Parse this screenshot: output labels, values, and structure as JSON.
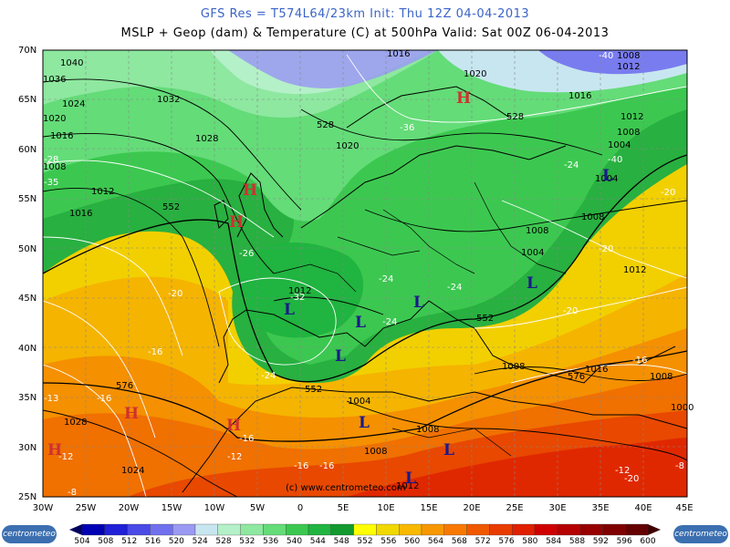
{
  "header": {
    "line1": "GFS Res = T574L64/23km   Init: Thu 12Z 04-04-2013",
    "line2": "MSLP + Geop (dam) & Temperature (C) at 500hPa   Valid: Sat 00Z 06-04-2013"
  },
  "axes": {
    "lat_labels": [
      "70N",
      "65N",
      "60N",
      "55N",
      "50N",
      "45N",
      "40N",
      "35N",
      "30N",
      "25N"
    ],
    "lon_labels": [
      "30W",
      "25W",
      "20W",
      "15W",
      "10W",
      "5W",
      "0",
      "5E",
      "10E",
      "15E",
      "20E",
      "25E",
      "30E",
      "35E",
      "40E",
      "45E"
    ]
  },
  "pressure_centers": [
    {
      "type": "H",
      "color": "#d03030"
    },
    {
      "type": "H",
      "color": "#d03030"
    },
    {
      "type": "H",
      "color": "#d03030"
    },
    {
      "type": "H",
      "color": "#d03030"
    },
    {
      "type": "H",
      "color": "#d03030"
    },
    {
      "type": "H",
      "color": "#d03030"
    },
    {
      "type": "L",
      "color": "#1a1a8a"
    },
    {
      "type": "L",
      "color": "#1a1a8a"
    },
    {
      "type": "L",
      "color": "#1a1a8a"
    },
    {
      "type": "L",
      "color": "#1a1a8a"
    },
    {
      "type": "L",
      "color": "#1a1a8a"
    },
    {
      "type": "L",
      "color": "#1a1a8a"
    },
    {
      "type": "L",
      "color": "#1a1a8a"
    },
    {
      "type": "L",
      "color": "#1a1a8a"
    },
    {
      "type": "L",
      "color": "#1a1a8a"
    }
  ],
  "isobar_labels": [
    "1040",
    "1036",
    "1024",
    "1020",
    "1032",
    "1028",
    "1016",
    "1008",
    "1012",
    "1016",
    "1020",
    "1016",
    "1008",
    "1012",
    "1004",
    "1012",
    "1008",
    "1004",
    "1008",
    "1012",
    "1012",
    "1004",
    "1008",
    "1016",
    "1008",
    "1016",
    "1028",
    "1008",
    "1004",
    "1008",
    "1024",
    "1012",
    "1008",
    "1000",
    "1020"
  ],
  "geopotential_labels": [
    "528",
    "528",
    "552",
    "552",
    "552",
    "576",
    "576"
  ],
  "temperature_labels": [
    "-28",
    "-35",
    "-24",
    "-20",
    "-36",
    "-26",
    "-32",
    "-24",
    "-24",
    "-24",
    "-24",
    "-20",
    "-20",
    "-16",
    "-20",
    "-16",
    "-16",
    "-16",
    "-13",
    "-12",
    "-12",
    "-16",
    "-16",
    "-20",
    "-8",
    "-8",
    "-40",
    "-40",
    "-12"
  ],
  "colorbar": {
    "ticks": [
      "504",
      "508",
      "512",
      "516",
      "520",
      "524",
      "528",
      "532",
      "536",
      "540",
      "544",
      "548",
      "552",
      "556",
      "560",
      "564",
      "568",
      "572",
      "576",
      "580",
      "584",
      "588",
      "592",
      "596",
      "600"
    ],
    "colors": [
      "#0000b4",
      "#2020d8",
      "#4a4ae6",
      "#7070ee",
      "#9a9af2",
      "#c8e6f0",
      "#b4f0c8",
      "#8ee8a0",
      "#64dc78",
      "#3cc850",
      "#20b440",
      "#129a30",
      "#ffff00",
      "#f0d800",
      "#f8b800",
      "#f89800",
      "#f87800",
      "#f05800",
      "#e83c00",
      "#e02000",
      "#d00000",
      "#b40000",
      "#980000",
      "#800000",
      "#640000"
    ],
    "logo_text": "centrometeo"
  },
  "credit": "(c) www.centrometeo.com"
}
